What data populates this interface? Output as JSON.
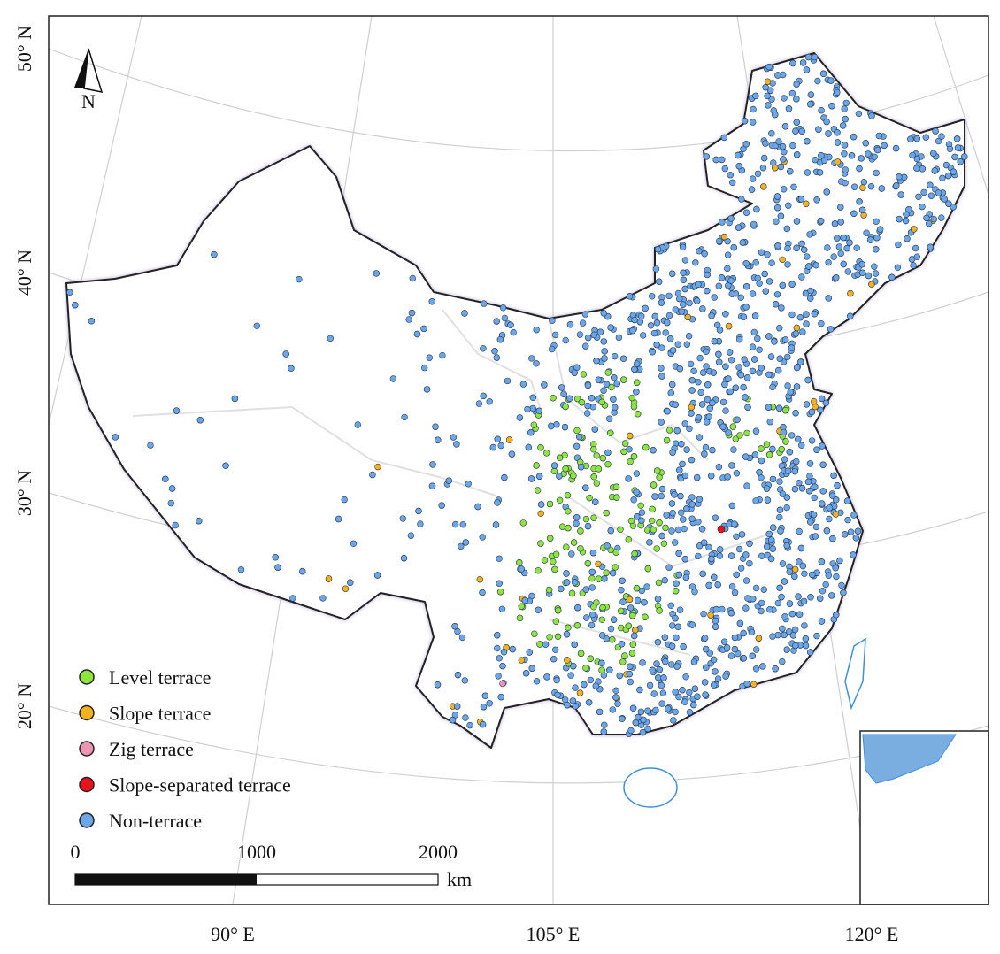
{
  "map": {
    "lat_labels": [
      "50° N",
      "40° N",
      "30° N",
      "20° N"
    ],
    "lon_labels": [
      "90° E",
      "105° E",
      "120° E"
    ],
    "north": "N",
    "legend": [
      {
        "label": "Level terrace",
        "color": "#8ee63c"
      },
      {
        "label": "Slope terrace",
        "color": "#f5b21c"
      },
      {
        "label": "Zig terrace",
        "color": "#ef93b3"
      },
      {
        "label": "Slope-separated terrace",
        "color": "#e8141c"
      },
      {
        "label": "Non-terrace",
        "color": "#6aa6e8"
      }
    ],
    "scale_bar": {
      "ticks": [
        0,
        1000,
        2000
      ],
      "unit": "km"
    }
  }
}
